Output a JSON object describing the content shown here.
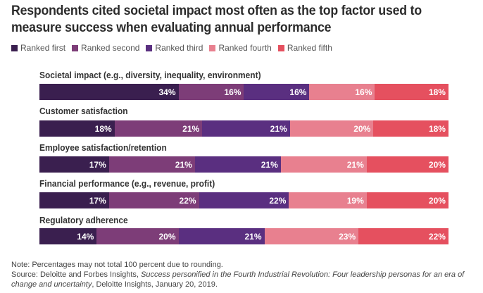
{
  "chart_data": {
    "type": "bar",
    "orientation": "horizontal-stacked-100",
    "title": "Respondents cited societal impact most often as the top factor used to measure success when evaluating annual performance",
    "categories": [
      "Societal impact (e.g., diversity, inequality, environment)",
      "Customer satisfaction",
      "Employee satisfaction/retention",
      "Financial performance (e.g., revenue, profit)",
      "Regulatory adherence"
    ],
    "series": [
      {
        "name": "Ranked first",
        "color": "#3a1f4f",
        "values": [
          34,
          18,
          17,
          17,
          14
        ]
      },
      {
        "name": "Ranked second",
        "color": "#7d3d78",
        "values": [
          16,
          21,
          21,
          22,
          20
        ]
      },
      {
        "name": "Ranked third",
        "color": "#5a2f80",
        "values": [
          16,
          21,
          21,
          22,
          21
        ]
      },
      {
        "name": "Ranked fourth",
        "color": "#e8808f",
        "values": [
          16,
          20,
          21,
          19,
          23
        ]
      },
      {
        "name": "Ranked fifth",
        "color": "#e5505f",
        "values": [
          18,
          18,
          20,
          20,
          22
        ]
      }
    ],
    "value_suffix": "%",
    "legend_position": "top-left",
    "grid": false
  },
  "notes": {
    "note": "Note: Percentages may not total 100 percent due to rounding.",
    "source_prefix": "Source: Deloitte and Forbes Insights, ",
    "source_title": "Success personified in the Fourth Industrial Revolution: Four leadership personas for an era of change and uncertainty",
    "source_suffix": ", Deloitte Insights, January 20, 2019."
  }
}
